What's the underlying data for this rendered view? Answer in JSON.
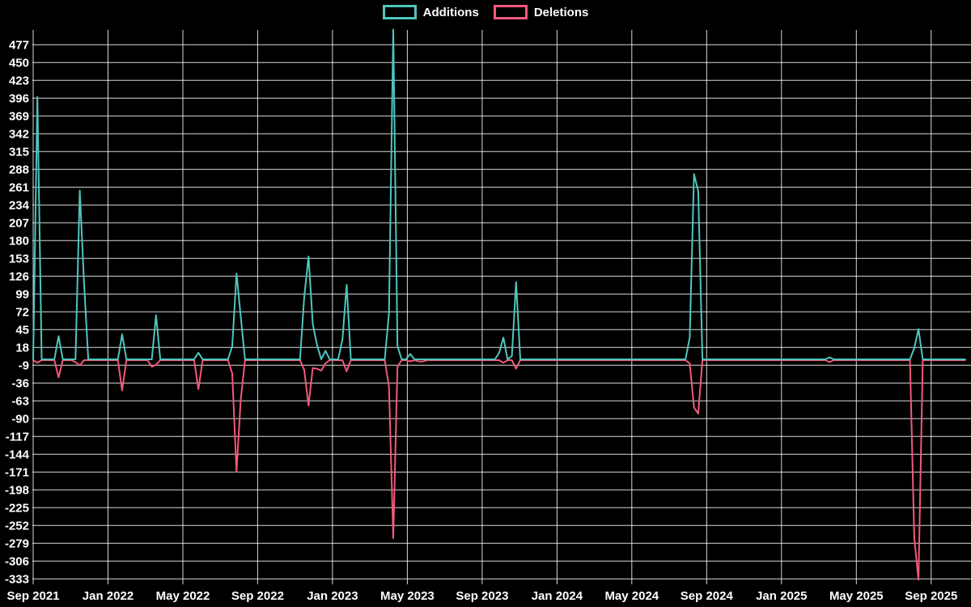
{
  "chart_data": {
    "type": "line",
    "title": "",
    "background_color": "#000000",
    "grid": true,
    "grid_color": "#ffffff",
    "text_color": "#ffffff",
    "legend": {
      "position": "top-center",
      "items": [
        {
          "label": "Additions",
          "color": "#4EC6BE"
        },
        {
          "label": "Deletions",
          "color": "#F2597A"
        }
      ]
    },
    "x_axis": {
      "start_label": "Sep 2021",
      "end_label": "Sep 2025",
      "unit": "week",
      "weeks_total": 221,
      "tick_labels": [
        "Sep 2021",
        "Jan 2022",
        "May 2022",
        "Sep 2022",
        "Jan 2023",
        "May 2023",
        "Sep 2023",
        "Jan 2024",
        "May 2024",
        "Sep 2024",
        "Jan 2025",
        "May 2025",
        "Sep 2025"
      ]
    },
    "y_axis": {
      "max": 477,
      "min": -333,
      "step": 27,
      "tick_labels": [
        477,
        450,
        423,
        396,
        369,
        342,
        315,
        288,
        261,
        234,
        207,
        180,
        153,
        126,
        99,
        72,
        45,
        18,
        -9,
        -36,
        -63,
        -90,
        -117,
        -144,
        -171,
        -198,
        -225,
        -252,
        -279,
        -306,
        -333
      ]
    },
    "series": [
      {
        "name": "Additions",
        "color": "#4EC6BE",
        "baseline": 0,
        "spikes": {
          "1": 398,
          "6": 35,
          "11": 256,
          "12": 118,
          "21": 38,
          "29": 67,
          "39": 10,
          "47": 20,
          "48": 130,
          "49": 65,
          "64": 95,
          "65": 156,
          "66": 54,
          "67": 22,
          "69": 13,
          "73": 30,
          "74": 113,
          "84": 70,
          "85": 500,
          "86": 20,
          "89": 8,
          "110": 10,
          "111": 33,
          "113": 5,
          "114": 117,
          "155": 33,
          "156": 281,
          "157": 255,
          "188": 3,
          "208": 17,
          "209": 46
        }
      },
      {
        "name": "Deletions",
        "color": "#F2597A",
        "baseline": 0,
        "spikes": {
          "1": -4,
          "6": -26,
          "10": -3,
          "11": -8,
          "21": -46,
          "28": -10,
          "29": -7,
          "39": -44,
          "47": -20,
          "48": -169,
          "49": -60,
          "64": -15,
          "65": -69,
          "66": -12,
          "67": -13,
          "68": -16,
          "69": -5,
          "74": -17,
          "84": -40,
          "85": -270,
          "86": -10,
          "89": -2,
          "91": -2,
          "92": -2,
          "111": -4,
          "114": -13,
          "155": -5,
          "156": -72,
          "157": -81,
          "188": -3,
          "208": -270,
          "209": -333
        }
      }
    ]
  }
}
